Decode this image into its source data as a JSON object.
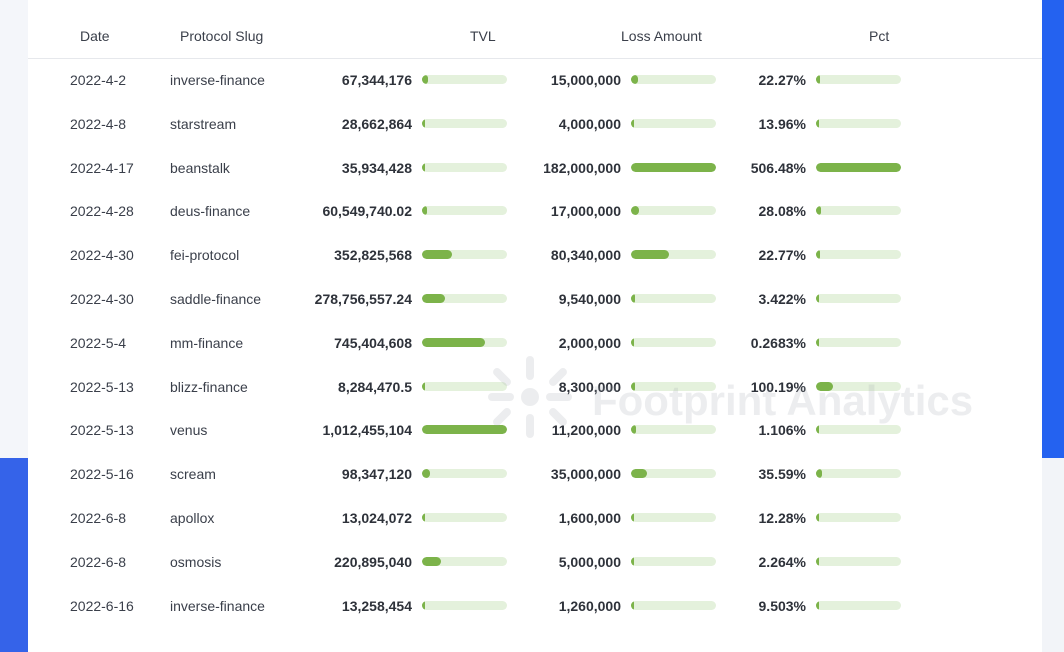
{
  "table": {
    "columns": [
      "Date",
      "Protocol Slug",
      "TVL",
      "Loss Amount",
      "Pct"
    ],
    "rows": [
      {
        "date": "2022-4-2",
        "slug": "inverse-finance",
        "tvl": "67,344,176",
        "tvl_val": 67344176,
        "loss": "15,000,000",
        "loss_val": 15000000,
        "pct": "22.27%",
        "pct_val": 22.27
      },
      {
        "date": "2022-4-8",
        "slug": "starstream",
        "tvl": "28,662,864",
        "tvl_val": 28662864,
        "loss": "4,000,000",
        "loss_val": 4000000,
        "pct": "13.96%",
        "pct_val": 13.96
      },
      {
        "date": "2022-4-17",
        "slug": "beanstalk",
        "tvl": "35,934,428",
        "tvl_val": 35934428,
        "loss": "182,000,000",
        "loss_val": 182000000,
        "pct": "506.48%",
        "pct_val": 506.48
      },
      {
        "date": "2022-4-28",
        "slug": "deus-finance",
        "tvl": "60,549,740.02",
        "tvl_val": 60549740.02,
        "loss": "17,000,000",
        "loss_val": 17000000,
        "pct": "28.08%",
        "pct_val": 28.08
      },
      {
        "date": "2022-4-30",
        "slug": "fei-protocol",
        "tvl": "352,825,568",
        "tvl_val": 352825568,
        "loss": "80,340,000",
        "loss_val": 80340000,
        "pct": "22.77%",
        "pct_val": 22.77
      },
      {
        "date": "2022-4-30",
        "slug": "saddle-finance",
        "tvl": "278,756,557.24",
        "tvl_val": 278756557.24,
        "loss": "9,540,000",
        "loss_val": 9540000,
        "pct": "3.422%",
        "pct_val": 3.422
      },
      {
        "date": "2022-5-4",
        "slug": "mm-finance",
        "tvl": "745,404,608",
        "tvl_val": 745404608,
        "loss": "2,000,000",
        "loss_val": 2000000,
        "pct": "0.2683%",
        "pct_val": 0.2683
      },
      {
        "date": "2022-5-13",
        "slug": "blizz-finance",
        "tvl": "8,284,470.5",
        "tvl_val": 8284470.5,
        "loss": "8,300,000",
        "loss_val": 8300000,
        "pct": "100.19%",
        "pct_val": 100.19
      },
      {
        "date": "2022-5-13",
        "slug": "venus",
        "tvl": "1,012,455,104",
        "tvl_val": 1012455104,
        "loss": "11,200,000",
        "loss_val": 11200000,
        "pct": "1.106%",
        "pct_val": 1.106
      },
      {
        "date": "2022-5-16",
        "slug": "scream",
        "tvl": "98,347,120",
        "tvl_val": 98347120,
        "loss": "35,000,000",
        "loss_val": 35000000,
        "pct": "35.59%",
        "pct_val": 35.59
      },
      {
        "date": "2022-6-8",
        "slug": "apollox",
        "tvl": "13,024,072",
        "tvl_val": 13024072,
        "loss": "1,600,000",
        "loss_val": 1600000,
        "pct": "12.28%",
        "pct_val": 12.28
      },
      {
        "date": "2022-6-8",
        "slug": "osmosis",
        "tvl": "220,895,040",
        "tvl_val": 220895040,
        "loss": "5,000,000",
        "loss_val": 5000000,
        "pct": "2.264%",
        "pct_val": 2.264
      },
      {
        "date": "2022-6-16",
        "slug": "inverse-finance",
        "tvl": "13,258,454",
        "tvl_val": 13258454,
        "loss": "1,260,000",
        "loss_val": 1260000,
        "pct": "9.503%",
        "pct_val": 9.503
      }
    ]
  },
  "watermark": {
    "text": "Footprint Analytics",
    "icon": "footprint-logo-icon"
  },
  "colors": {
    "bar_fill": "#7cb34a",
    "bar_track": "#e4f1dc",
    "accent_blue": "#2462f0"
  }
}
